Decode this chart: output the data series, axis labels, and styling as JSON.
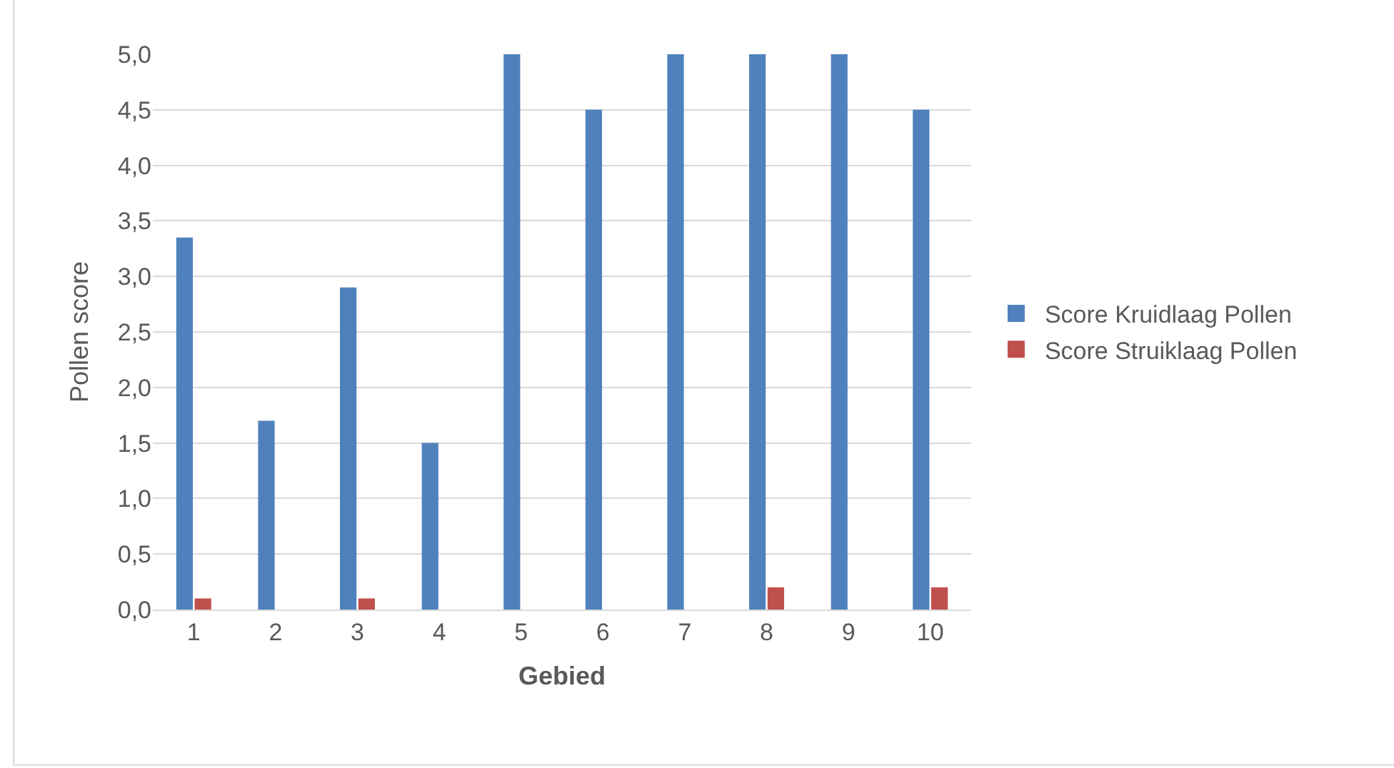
{
  "chart_data": {
    "type": "bar",
    "xlabel": "Gebied",
    "ylabel": "Pollen score",
    "categories": [
      "1",
      "2",
      "3",
      "4",
      "5",
      "6",
      "7",
      "8",
      "9",
      "10"
    ],
    "series": [
      {
        "name": "Score Kruidlaag Pollen",
        "color": "#4f81bd",
        "values": [
          3.35,
          1.7,
          2.9,
          1.5,
          5.0,
          4.5,
          5.0,
          5.0,
          5.0,
          4.5
        ]
      },
      {
        "name": "Score Struiklaag Pollen",
        "color": "#c0504d",
        "values": [
          0.1,
          0,
          0.1,
          0,
          0,
          0,
          0,
          0.2,
          0,
          0.2
        ]
      }
    ],
    "ylim": [
      0,
      5
    ],
    "yticks": [
      {
        "value": 0,
        "label": "0,0"
      },
      {
        "value": 0.5,
        "label": "0,5"
      },
      {
        "value": 1,
        "label": "1,0"
      },
      {
        "value": 1.5,
        "label": "1,5"
      },
      {
        "value": 2,
        "label": "2,0"
      },
      {
        "value": 2.5,
        "label": "2,5"
      },
      {
        "value": 3,
        "label": "3,0"
      },
      {
        "value": 3.5,
        "label": "3,5"
      },
      {
        "value": 4,
        "label": "4,0"
      },
      {
        "value": 4.5,
        "label": "4,5"
      },
      {
        "value": 5,
        "label": "5,0"
      }
    ],
    "grid": "y",
    "legend": "right"
  }
}
